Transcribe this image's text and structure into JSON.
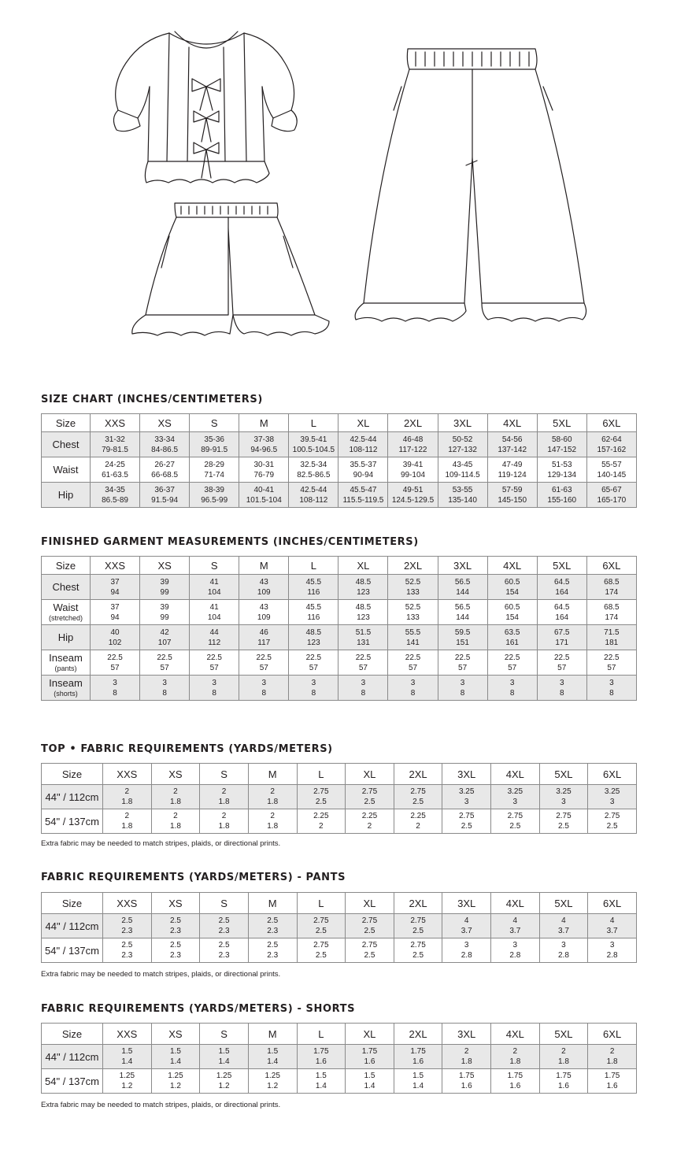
{
  "sizes": [
    "XXS",
    "XS",
    "S",
    "M",
    "L",
    "XL",
    "2XL",
    "3XL",
    "4XL",
    "5XL",
    "6XL"
  ],
  "size_label": "Size",
  "size_chart": {
    "title": "SIZE CHART (INCHES/CENTIMETERS)",
    "rows": [
      {
        "label": "Chest",
        "sub": "",
        "values": [
          [
            "31-32",
            "79-81.5"
          ],
          [
            "33-34",
            "84-86.5"
          ],
          [
            "35-36",
            "89-91.5"
          ],
          [
            "37-38",
            "94-96.5"
          ],
          [
            "39.5-41",
            "100.5-104.5"
          ],
          [
            "42.5-44",
            "108-112"
          ],
          [
            "46-48",
            "117-122"
          ],
          [
            "50-52",
            "127-132"
          ],
          [
            "54-56",
            "137-142"
          ],
          [
            "58-60",
            "147-152"
          ],
          [
            "62-64",
            "157-162"
          ]
        ]
      },
      {
        "label": "Waist",
        "sub": "",
        "values": [
          [
            "24-25",
            "61-63.5"
          ],
          [
            "26-27",
            "66-68.5"
          ],
          [
            "28-29",
            "71-74"
          ],
          [
            "30-31",
            "76-79"
          ],
          [
            "32.5-34",
            "82.5-86.5"
          ],
          [
            "35.5-37",
            "90-94"
          ],
          [
            "39-41",
            "99-104"
          ],
          [
            "43-45",
            "109-114.5"
          ],
          [
            "47-49",
            "119-124"
          ],
          [
            "51-53",
            "129-134"
          ],
          [
            "55-57",
            "140-145"
          ]
        ]
      },
      {
        "label": "Hip",
        "sub": "",
        "values": [
          [
            "34-35",
            "86.5-89"
          ],
          [
            "36-37",
            "91.5-94"
          ],
          [
            "38-39",
            "96.5-99"
          ],
          [
            "40-41",
            "101.5-104"
          ],
          [
            "42.5-44",
            "108-112"
          ],
          [
            "45.5-47",
            "115.5-119.5"
          ],
          [
            "49-51",
            "124.5-129.5"
          ],
          [
            "53-55",
            "135-140"
          ],
          [
            "57-59",
            "145-150"
          ],
          [
            "61-63",
            "155-160"
          ],
          [
            "65-67",
            "165-170"
          ]
        ]
      }
    ]
  },
  "finished": {
    "title": "FINISHED GARMENT MEASUREMENTS (INCHES/CENTIMETERS)",
    "rows": [
      {
        "label": "Chest",
        "sub": "",
        "values": [
          [
            "37",
            "94"
          ],
          [
            "39",
            "99"
          ],
          [
            "41",
            "104"
          ],
          [
            "43",
            "109"
          ],
          [
            "45.5",
            "116"
          ],
          [
            "48.5",
            "123"
          ],
          [
            "52.5",
            "133"
          ],
          [
            "56.5",
            "144"
          ],
          [
            "60.5",
            "154"
          ],
          [
            "64.5",
            "164"
          ],
          [
            "68.5",
            "174"
          ]
        ]
      },
      {
        "label": "Waist",
        "sub": "(stretched)",
        "values": [
          [
            "37",
            "94"
          ],
          [
            "39",
            "99"
          ],
          [
            "41",
            "104"
          ],
          [
            "43",
            "109"
          ],
          [
            "45.5",
            "116"
          ],
          [
            "48.5",
            "123"
          ],
          [
            "52.5",
            "133"
          ],
          [
            "56.5",
            "144"
          ],
          [
            "60.5",
            "154"
          ],
          [
            "64.5",
            "164"
          ],
          [
            "68.5",
            "174"
          ]
        ]
      },
      {
        "label": "Hip",
        "sub": "",
        "values": [
          [
            "40",
            "102"
          ],
          [
            "42",
            "107"
          ],
          [
            "44",
            "112"
          ],
          [
            "46",
            "117"
          ],
          [
            "48.5",
            "123"
          ],
          [
            "51.5",
            "131"
          ],
          [
            "55.5",
            "141"
          ],
          [
            "59.5",
            "151"
          ],
          [
            "63.5",
            "161"
          ],
          [
            "67.5",
            "171"
          ],
          [
            "71.5",
            "181"
          ]
        ]
      },
      {
        "label": "Inseam",
        "sub": "(pants)",
        "values": [
          [
            "22.5",
            "57"
          ],
          [
            "22.5",
            "57"
          ],
          [
            "22.5",
            "57"
          ],
          [
            "22.5",
            "57"
          ],
          [
            "22.5",
            "57"
          ],
          [
            "22.5",
            "57"
          ],
          [
            "22.5",
            "57"
          ],
          [
            "22.5",
            "57"
          ],
          [
            "22.5",
            "57"
          ],
          [
            "22.5",
            "57"
          ],
          [
            "22.5",
            "57"
          ]
        ]
      },
      {
        "label": "Inseam",
        "sub": "(shorts)",
        "values": [
          [
            "3",
            "8"
          ],
          [
            "3",
            "8"
          ],
          [
            "3",
            "8"
          ],
          [
            "3",
            "8"
          ],
          [
            "3",
            "8"
          ],
          [
            "3",
            "8"
          ],
          [
            "3",
            "8"
          ],
          [
            "3",
            "8"
          ],
          [
            "3",
            "8"
          ],
          [
            "3",
            "8"
          ],
          [
            "3",
            "8"
          ]
        ]
      }
    ]
  },
  "fabric_top": {
    "title": "TOP • FABRIC REQUIREMENTS (YARDS/METERS)",
    "note": "Extra fabric may be needed to match stripes, plaids, or directional prints.",
    "rows": [
      {
        "label": "44\" / 112cm",
        "sub": "",
        "values": [
          [
            "2",
            "1.8"
          ],
          [
            "2",
            "1.8"
          ],
          [
            "2",
            "1.8"
          ],
          [
            "2",
            "1.8"
          ],
          [
            "2.75",
            "2.5"
          ],
          [
            "2.75",
            "2.5"
          ],
          [
            "2.75",
            "2.5"
          ],
          [
            "3.25",
            "3"
          ],
          [
            "3.25",
            "3"
          ],
          [
            "3.25",
            "3"
          ],
          [
            "3.25",
            "3"
          ]
        ]
      },
      {
        "label": "54\" / 137cm",
        "sub": "",
        "values": [
          [
            "2",
            "1.8"
          ],
          [
            "2",
            "1.8"
          ],
          [
            "2",
            "1.8"
          ],
          [
            "2",
            "1.8"
          ],
          [
            "2.25",
            "2"
          ],
          [
            "2.25",
            "2"
          ],
          [
            "2.25",
            "2"
          ],
          [
            "2.75",
            "2.5"
          ],
          [
            "2.75",
            "2.5"
          ],
          [
            "2.75",
            "2.5"
          ],
          [
            "2.75",
            "2.5"
          ]
        ]
      }
    ]
  },
  "fabric_pants": {
    "title": "FABRIC REQUIREMENTS (YARDS/METERS) - PANTS",
    "note": "Extra fabric may be needed to match stripes, plaids, or directional prints.",
    "rows": [
      {
        "label": "44\" / 112cm",
        "sub": "",
        "values": [
          [
            "2.5",
            "2.3"
          ],
          [
            "2.5",
            "2.3"
          ],
          [
            "2.5",
            "2.3"
          ],
          [
            "2.5",
            "2.3"
          ],
          [
            "2.75",
            "2.5"
          ],
          [
            "2.75",
            "2.5"
          ],
          [
            "2.75",
            "2.5"
          ],
          [
            "4",
            "3.7"
          ],
          [
            "4",
            "3.7"
          ],
          [
            "4",
            "3.7"
          ],
          [
            "4",
            "3.7"
          ]
        ]
      },
      {
        "label": "54\" / 137cm",
        "sub": "",
        "values": [
          [
            "2.5",
            "2.3"
          ],
          [
            "2.5",
            "2.3"
          ],
          [
            "2.5",
            "2.3"
          ],
          [
            "2.5",
            "2.3"
          ],
          [
            "2.75",
            "2.5"
          ],
          [
            "2.75",
            "2.5"
          ],
          [
            "2.75",
            "2.5"
          ],
          [
            "3",
            "2.8"
          ],
          [
            "3",
            "2.8"
          ],
          [
            "3",
            "2.8"
          ],
          [
            "3",
            "2.8"
          ]
        ]
      }
    ]
  },
  "fabric_shorts": {
    "title": "FABRIC REQUIREMENTS (YARDS/METERS) - SHORTS",
    "note": "Extra fabric may be needed to match stripes, plaids, or directional prints.",
    "rows": [
      {
        "label": "44\" / 112cm",
        "sub": "",
        "values": [
          [
            "1.5",
            "1.4"
          ],
          [
            "1.5",
            "1.4"
          ],
          [
            "1.5",
            "1.4"
          ],
          [
            "1.5",
            "1.4"
          ],
          [
            "1.75",
            "1.6"
          ],
          [
            "1.75",
            "1.6"
          ],
          [
            "1.75",
            "1.6"
          ],
          [
            "2",
            "1.8"
          ],
          [
            "2",
            "1.8"
          ],
          [
            "2",
            "1.8"
          ],
          [
            "2",
            "1.8"
          ]
        ]
      },
      {
        "label": "54\" / 137cm",
        "sub": "",
        "values": [
          [
            "1.25",
            "1.2"
          ],
          [
            "1.25",
            "1.2"
          ],
          [
            "1.25",
            "1.2"
          ],
          [
            "1.25",
            "1.2"
          ],
          [
            "1.5",
            "1.4"
          ],
          [
            "1.5",
            "1.4"
          ],
          [
            "1.5",
            "1.4"
          ],
          [
            "1.75",
            "1.6"
          ],
          [
            "1.75",
            "1.6"
          ],
          [
            "1.75",
            "1.6"
          ],
          [
            "1.75",
            "1.6"
          ]
        ]
      }
    ]
  }
}
